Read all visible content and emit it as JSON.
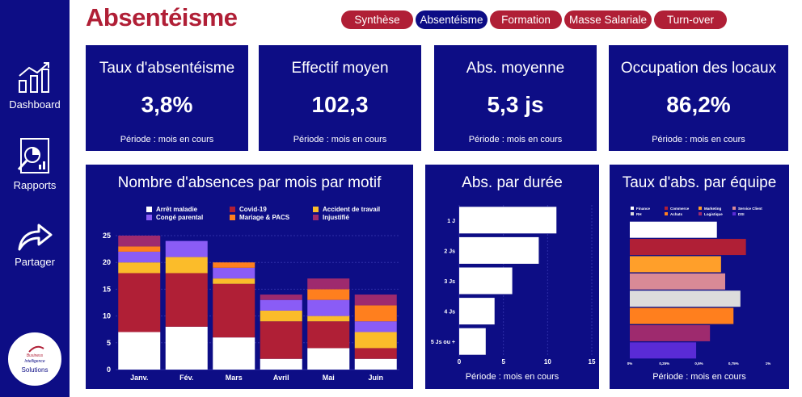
{
  "page": {
    "title": "Absentéisme"
  },
  "nav": [
    {
      "label": "Synthèse",
      "active": false
    },
    {
      "label": "Absentéisme",
      "active": true
    },
    {
      "label": "Formation",
      "active": false
    },
    {
      "label": "Masse Salariale",
      "active": false
    },
    {
      "label": "Turn-over",
      "active": false
    }
  ],
  "sidebar": {
    "items": [
      {
        "label": "Dashboard",
        "icon": "bar-chart-icon"
      },
      {
        "label": "Rapports",
        "icon": "report-magnifier-icon"
      },
      {
        "label": "Partager",
        "icon": "share-arrow-icon"
      }
    ],
    "logo": {
      "line1": "Business",
      "line2": "Intelligence",
      "line3": "Solutions"
    }
  },
  "kpis": [
    {
      "label": "Taux d'absentéisme",
      "value": "3,8%",
      "period": "Période : mois en cours"
    },
    {
      "label": "Effectif moyen",
      "value": "102,3",
      "period": "Période : mois en cours"
    },
    {
      "label": "Abs. moyenne",
      "value": "5,3 js",
      "period": "Période : mois en cours"
    },
    {
      "label": "Occupation des locaux",
      "value": "86,2%",
      "period": "Période : mois en cours"
    }
  ],
  "colors": {
    "navy": "#0d0d85",
    "red": "#b01f36",
    "white": "#ffffff"
  },
  "chart_data": [
    {
      "type": "bar",
      "stacked": true,
      "title": "Nombre d'absences par mois par motif",
      "categories": [
        "Janv.",
        "Fév.",
        "Mars",
        "Avril",
        "Mai",
        "Juin"
      ],
      "ylim": [
        0,
        25
      ],
      "yticks": [
        0,
        5,
        10,
        15,
        20,
        25
      ],
      "grid": true,
      "legend_position": "top",
      "series": [
        {
          "name": "Arrêt maladie",
          "color": "#ffffff",
          "values": [
            7,
            8,
            6,
            2,
            4,
            2
          ]
        },
        {
          "name": "Covid-19",
          "color": "#b01f36",
          "values": [
            11,
            10,
            10,
            7,
            5,
            2
          ]
        },
        {
          "name": "Accident de travail",
          "color": "#fbbc2a",
          "values": [
            2,
            3,
            1,
            2,
            1,
            3
          ]
        },
        {
          "name": "Congé parental",
          "color": "#8a5cf6",
          "values": [
            2,
            3,
            2,
            2,
            3,
            2
          ]
        },
        {
          "name": "Mariage & PACS",
          "color": "#ff7f1e",
          "values": [
            1,
            0,
            1,
            0,
            2,
            3
          ]
        },
        {
          "name": "Injustifié",
          "color": "#9e2a6e",
          "values": [
            2,
            0,
            0,
            1,
            2,
            2
          ]
        }
      ],
      "period": ""
    },
    {
      "type": "bar",
      "orientation": "horizontal",
      "title": "Abs. par durée",
      "categories": [
        "1 J",
        "2 Js",
        "3 Js",
        "4 Js",
        "5 Js ou +"
      ],
      "values": [
        11,
        9,
        6,
        4,
        3
      ],
      "xlim": [
        0,
        15
      ],
      "xticks": [
        0,
        5,
        10,
        15
      ],
      "grid": true,
      "color": "#ffffff",
      "period": "Période : mois en cours"
    },
    {
      "type": "bar",
      "orientation": "horizontal",
      "title": "Taux d'abs. par équipe",
      "categories": [
        "Finance",
        "Commerce",
        "Marketing",
        "Service Client",
        "RH",
        "Achats",
        "Logistique",
        "DSI"
      ],
      "values": [
        0.63,
        0.84,
        0.66,
        0.69,
        0.8,
        0.75,
        0.58,
        0.48
      ],
      "colors": [
        "#ffffff",
        "#b01f36",
        "#ff9f2a",
        "#d98a96",
        "#dcdcdc",
        "#ff7f1e",
        "#9e2a6e",
        "#5a2bd6"
      ],
      "xlim": [
        0,
        1
      ],
      "xtick_labels": [
        "0%",
        "0,25%",
        "0,5%",
        "0,75%",
        "1%"
      ],
      "legend_position": "top",
      "period": "Période : mois en cours"
    }
  ]
}
